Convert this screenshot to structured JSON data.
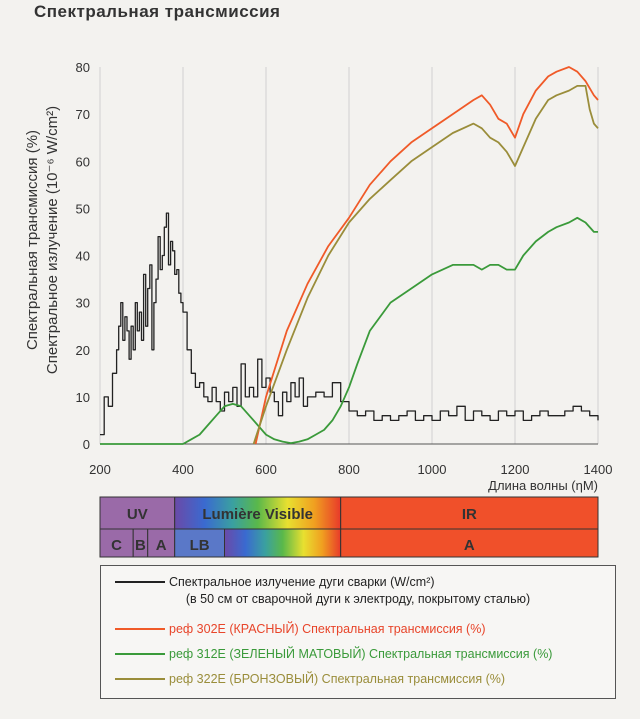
{
  "title": "Спектральная трансмиссия",
  "chart_data": {
    "type": "line",
    "ylabel_lines": [
      "Спектральная трансмиссия (%)",
      "Спектральное излучение (10⁻⁶ W/cm²)"
    ],
    "xlabel": "Длина волны (ηM)",
    "xlim": [
      200,
      1400
    ],
    "ylim": [
      0,
      80
    ],
    "x_ticks": [
      200,
      400,
      600,
      800,
      1000,
      1200,
      1400
    ],
    "y_ticks": [
      0,
      10,
      20,
      30,
      40,
      50,
      60,
      70,
      80
    ],
    "x_tick_labels": [
      "200",
      "400",
      "600",
      "800",
      "1000",
      "1200",
      "1400"
    ],
    "y_tick_labels": [
      "0",
      "10",
      "20",
      "30",
      "40",
      "50",
      "60",
      "70",
      "80"
    ],
    "series": [
      {
        "key": "arc",
        "color": "#222222",
        "step": true,
        "x": [
          200,
          210,
          220,
          230,
          240,
          245,
          250,
          255,
          260,
          265,
          270,
          275,
          280,
          285,
          290,
          295,
          300,
          305,
          310,
          315,
          320,
          325,
          330,
          335,
          340,
          345,
          350,
          355,
          360,
          365,
          370,
          375,
          380,
          385,
          390,
          395,
          400,
          410,
          420,
          430,
          440,
          450,
          460,
          470,
          480,
          490,
          500,
          510,
          520,
          530,
          540,
          550,
          560,
          570,
          580,
          590,
          600,
          610,
          620,
          630,
          640,
          650,
          660,
          670,
          680,
          690,
          700,
          720,
          740,
          760,
          780,
          800,
          820,
          840,
          860,
          880,
          900,
          920,
          940,
          960,
          980,
          1000,
          1020,
          1040,
          1060,
          1080,
          1100,
          1120,
          1140,
          1160,
          1180,
          1200,
          1220,
          1240,
          1260,
          1280,
          1300,
          1320,
          1340,
          1360,
          1380,
          1400
        ],
        "y": [
          2,
          10,
          8,
          15,
          20,
          25,
          30,
          22,
          27,
          24,
          18,
          25,
          20,
          30,
          24,
          28,
          22,
          36,
          25,
          33,
          38,
          20,
          30,
          35,
          44,
          37,
          40,
          46,
          49,
          38,
          43,
          41,
          36,
          37,
          32,
          30,
          28,
          20,
          15,
          12,
          13,
          10,
          9,
          12,
          9,
          7,
          11,
          9,
          12,
          8,
          17,
          10,
          12,
          10,
          18,
          12,
          14,
          11,
          9,
          6,
          11,
          9,
          13,
          10,
          14,
          8,
          10,
          11,
          10,
          13,
          9,
          7,
          6,
          7,
          5,
          6,
          5,
          6,
          7,
          5,
          6,
          5,
          7,
          6,
          8,
          5,
          7,
          6,
          5,
          7,
          6,
          7,
          5,
          6,
          7,
          6,
          6,
          7,
          8,
          7,
          6,
          5
        ]
      },
      {
        "key": "red",
        "color": "#f05a28",
        "x": [
          575,
          600,
          650,
          700,
          750,
          800,
          850,
          900,
          950,
          1000,
          1050,
          1100,
          1120,
          1140,
          1160,
          1180,
          1200,
          1220,
          1250,
          1280,
          1300,
          1330,
          1350,
          1370,
          1390,
          1400
        ],
        "y": [
          0,
          10,
          24,
          34,
          42,
          48,
          55,
          60,
          64,
          67,
          70,
          73,
          74,
          72,
          69,
          68,
          65,
          70,
          75,
          78,
          79,
          80,
          79,
          77,
          74,
          73
        ]
      },
      {
        "key": "green",
        "color": "#3a9a3a",
        "x": [
          200,
          400,
          420,
          440,
          460,
          480,
          500,
          520,
          540,
          560,
          580,
          600,
          620,
          640,
          660,
          680,
          700,
          720,
          740,
          760,
          780,
          800,
          820,
          850,
          900,
          950,
          1000,
          1050,
          1100,
          1120,
          1140,
          1160,
          1180,
          1200,
          1220,
          1250,
          1280,
          1300,
          1330,
          1350,
          1370,
          1390,
          1400
        ],
        "y": [
          0,
          0,
          1,
          2,
          4,
          6,
          8,
          8.5,
          8,
          6,
          4,
          2,
          1,
          0.5,
          0.2,
          0.5,
          1,
          2,
          3,
          5,
          8,
          12,
          17,
          24,
          30,
          33,
          36,
          38,
          38,
          37,
          38,
          38,
          37,
          37,
          40,
          43,
          45,
          46,
          47,
          48,
          47,
          45,
          45
        ]
      },
      {
        "key": "bronze",
        "color": "#9a8d3a",
        "x": [
          570,
          600,
          650,
          700,
          750,
          800,
          850,
          900,
          950,
          1000,
          1050,
          1100,
          1120,
          1140,
          1160,
          1180,
          1200,
          1220,
          1250,
          1280,
          1300,
          1330,
          1350,
          1370,
          1380,
          1390,
          1400
        ],
        "y": [
          0,
          8,
          20,
          31,
          40,
          47,
          52,
          56,
          60,
          63,
          66,
          68,
          67,
          65,
          64,
          62,
          59,
          63,
          69,
          73,
          74,
          75,
          76,
          76,
          71,
          68,
          67
        ]
      }
    ],
    "bands": {
      "row1": [
        {
          "label": "UV",
          "from": 200,
          "to": 380,
          "color": "#9a6aa8"
        },
        {
          "label": "Lumière Visible",
          "from": 380,
          "to": 780,
          "gradient": true
        },
        {
          "label": "IR",
          "from": 780,
          "to": 1400,
          "color": "#f0502a"
        }
      ],
      "row2": [
        {
          "label": "C",
          "from": 200,
          "to": 280,
          "color": "#9a6aa8"
        },
        {
          "label": "B",
          "from": 280,
          "to": 315,
          "color": "#9a6aa8"
        },
        {
          "label": "A",
          "from": 315,
          "to": 380,
          "color": "#9a6aa8"
        },
        {
          "label": "LB",
          "from": 380,
          "to": 500,
          "color": "#5a78c8"
        },
        {
          "label": "A",
          "from": 780,
          "to": 1400,
          "color": "#f0502a"
        }
      ]
    }
  },
  "legend": {
    "items": [
      {
        "key": "arc",
        "label": "Спектральное излучение дуги сварки (W/cm²)",
        "sub": "(в 50 см от сварочной дуги к электроду, покрытому сталью)",
        "color": "#222222",
        "text_color": "#222222"
      },
      {
        "key": "red",
        "label": "реф 302E (КРАСНЫЙ) Спектральная трансмиссия (%)",
        "color": "#f05a28",
        "text_color": "#e8452a"
      },
      {
        "key": "green",
        "label": "реф 312E (ЗЕЛЕНЫЙ МАТОВЫЙ) Спектральная трансмиссия (%)",
        "color": "#3a9a3a",
        "text_color": "#3a9a3a"
      },
      {
        "key": "bronze",
        "label": "реф 322E (БРОНЗОВЫЙ) Спектральная трансмиссия (%)",
        "color": "#9a8d3a",
        "text_color": "#9a8d3a"
      }
    ]
  }
}
